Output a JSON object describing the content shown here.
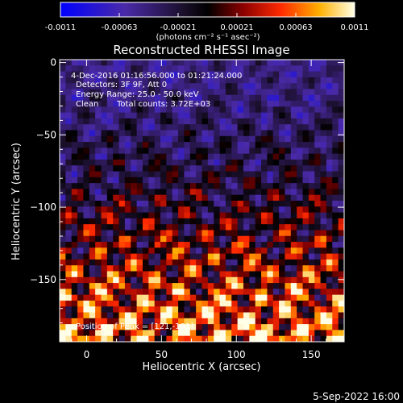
{
  "chart_data": {
    "type": "heatmap",
    "title": "Reconstructed RHESSI Image",
    "xlabel": "Heliocentric X (arcsec)",
    "ylabel": "Heliocentric Y (arcsec)",
    "xlim": [
      -18,
      172
    ],
    "ylim": [
      -193,
      2
    ],
    "xticks": [
      0,
      50,
      100,
      150
    ],
    "yticks": [
      0,
      -50,
      -100,
      -150
    ],
    "colorbar": {
      "min": -0.0011,
      "max": 0.0011,
      "ticks": [
        "-0.0011",
        "-0.00063",
        "-0.00021",
        "0.00021",
        "0.00063",
        "0.0011"
      ],
      "units_label": "(photons cm⁻² s⁻¹ asec⁻²)"
    },
    "annotations": {
      "time_range": "4-Dec-2016 01:16:56.000 to 01:21:24.000",
      "detectors": "Detectors: 3F 9F, Att 0",
      "energy": "Energy Range: 25.0 - 50.0 keV",
      "clean": "Clean",
      "counts": "Total counts: 3.72E+03",
      "peak": "Position of Peak = [121,-191]"
    },
    "peak_position": [
      121,
      -191
    ],
    "image_grid": {
      "nx": 48,
      "ny": 48,
      "note_structure": "rings of high emission increasing toward lower Y"
    }
  },
  "footer": {
    "date": "5-Sep-2022 16:00"
  }
}
